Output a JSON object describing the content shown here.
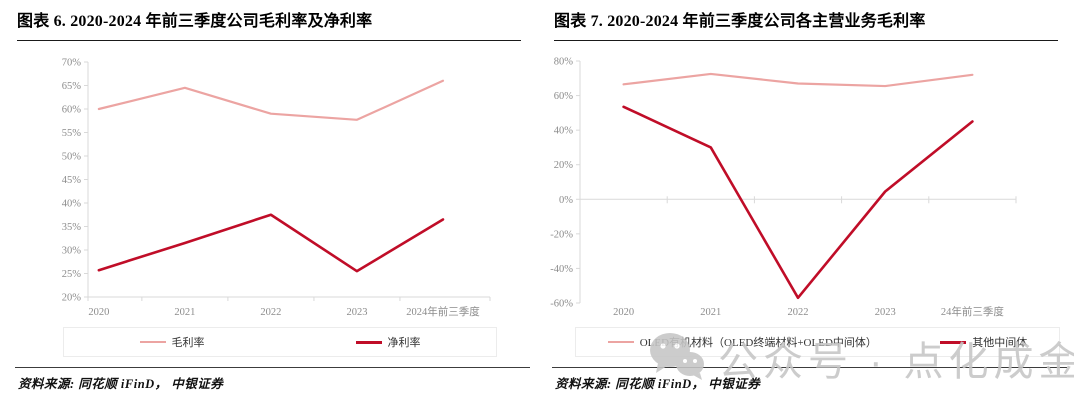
{
  "figures": [
    {
      "title": "图表 6. 2020-2024 年前三季度公司毛利率及净利率",
      "source": "资料来源: 同花顺 iFinD， 中银证券"
    },
    {
      "title": "图表 7. 2020-2024 年前三季度公司各主营业务毛利率",
      "source": "资料来源: 同花顺 iFinD， 中银证券"
    }
  ],
  "chart_data": [
    {
      "type": "line",
      "title": "2020-2024 年前三季度公司毛利率及净利率",
      "categories": [
        "2020",
        "2021",
        "2022",
        "2023",
        "2024年前三季度"
      ],
      "series": [
        {
          "name": "毛利率",
          "color": "#eca4a2",
          "values": [
            60,
            64.5,
            59,
            57.7,
            66
          ]
        },
        {
          "name": "净利率",
          "color": "#c00d28",
          "values": [
            25.7,
            31.5,
            37.5,
            25.5,
            36.5
          ]
        }
      ],
      "ylim": [
        20,
        70
      ],
      "ytick_step": 5,
      "ytick_format": "percent",
      "x_axis_at": "bottom",
      "grid": false,
      "legend_position": "bottom"
    },
    {
      "type": "line",
      "title": "2020-2024 年前三季度公司各主营业务毛利率",
      "categories": [
        "2020",
        "2021",
        "2022",
        "2023",
        "24年前三季度"
      ],
      "series": [
        {
          "name": "OLED有机材料（OLED终端材料+OLED中间体）",
          "color": "#eca4a2",
          "values": [
            66.5,
            72.5,
            67,
            65.5,
            72
          ]
        },
        {
          "name": "其他中间体",
          "color": "#c00d28",
          "values": [
            53.5,
            30,
            -57,
            4.5,
            45
          ]
        }
      ],
      "ylim": [
        -60,
        80
      ],
      "ytick_step": 20,
      "ytick_format": "percent",
      "x_axis_at": "zero",
      "grid": false,
      "legend_position": "bottom"
    }
  ],
  "watermark": {
    "text": "公众号 · 点化成金",
    "icon": "wechat-icon"
  },
  "colors": {
    "series_light": "#eca4a2",
    "series_dark": "#c00d28",
    "axis": "#d9d9d9",
    "tick_label": "#8c8c8c",
    "title_rule": "#1a1a1a",
    "watermark": "#c6c6c6"
  }
}
